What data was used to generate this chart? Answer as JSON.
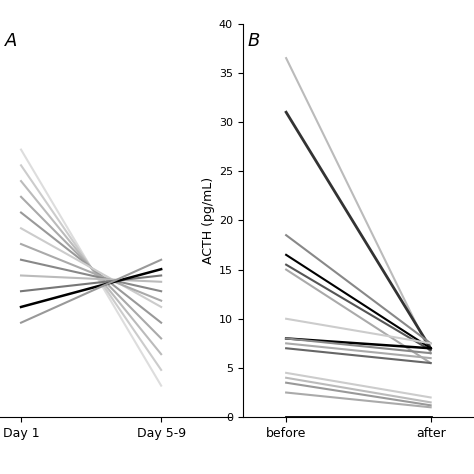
{
  "panel_A": {
    "label": "A",
    "xtick_labels": [
      "Day 1",
      "Day 5-9"
    ],
    "lines": [
      {
        "y": [
          8.0,
          0.5
        ],
        "color": "#dddddd",
        "lw": 1.5
      },
      {
        "y": [
          7.5,
          1.0
        ],
        "color": "#cccccc",
        "lw": 1.5
      },
      {
        "y": [
          7.0,
          1.5
        ],
        "color": "#bbbbbb",
        "lw": 1.5
      },
      {
        "y": [
          6.5,
          2.0
        ],
        "color": "#aaaaaa",
        "lw": 1.5
      },
      {
        "y": [
          6.0,
          2.5
        ],
        "color": "#999999",
        "lw": 1.5
      },
      {
        "y": [
          5.5,
          3.0
        ],
        "color": "#cccccc",
        "lw": 1.5
      },
      {
        "y": [
          5.0,
          3.2
        ],
        "color": "#aaaaaa",
        "lw": 1.5
      },
      {
        "y": [
          4.5,
          3.5
        ],
        "color": "#888888",
        "lw": 1.5
      },
      {
        "y": [
          4.0,
          3.8
        ],
        "color": "#bbbbbb",
        "lw": 1.5
      },
      {
        "y": [
          3.5,
          4.0
        ],
        "color": "#777777",
        "lw": 1.5
      },
      {
        "y": [
          3.0,
          4.2
        ],
        "color": "#000000",
        "lw": 1.8
      },
      {
        "y": [
          2.5,
          4.5
        ],
        "color": "#999999",
        "lw": 1.5
      }
    ],
    "ylim": [
      -0.5,
      12
    ],
    "yticks": []
  },
  "panel_B": {
    "label": "B",
    "xtick_labels": [
      "before",
      "after"
    ],
    "ylabel": "ACTH (pg/mL)",
    "lines": [
      {
        "before": 36.5,
        "after": 6.5,
        "color": "#bbbbbb",
        "lw": 1.5
      },
      {
        "before": 31.0,
        "after": 7.0,
        "color": "#333333",
        "lw": 2.0
      },
      {
        "before": 18.5,
        "after": 7.5,
        "color": "#888888",
        "lw": 1.5
      },
      {
        "before": 16.5,
        "after": 7.0,
        "color": "#000000",
        "lw": 1.5
      },
      {
        "before": 15.5,
        "after": 6.8,
        "color": "#555555",
        "lw": 1.5
      },
      {
        "before": 15.0,
        "after": 5.5,
        "color": "#aaaaaa",
        "lw": 1.5
      },
      {
        "before": 10.0,
        "after": 7.5,
        "color": "#cccccc",
        "lw": 1.5
      },
      {
        "before": 8.0,
        "after": 7.0,
        "color": "#000000",
        "lw": 1.8
      },
      {
        "before": 8.0,
        "after": 6.5,
        "color": "#888888",
        "lw": 1.5
      },
      {
        "before": 7.5,
        "after": 6.0,
        "color": "#aaaaaa",
        "lw": 1.5
      },
      {
        "before": 7.0,
        "after": 5.5,
        "color": "#666666",
        "lw": 1.5
      },
      {
        "before": 4.5,
        "after": 2.0,
        "color": "#cccccc",
        "lw": 1.5
      },
      {
        "before": 4.0,
        "after": 1.5,
        "color": "#bbbbbb",
        "lw": 1.5
      },
      {
        "before": 3.5,
        "after": 1.2,
        "color": "#999999",
        "lw": 1.5
      },
      {
        "before": 2.5,
        "after": 1.0,
        "color": "#aaaaaa",
        "lw": 1.5
      },
      {
        "before": 0.0,
        "after": 0.0,
        "color": "#000000",
        "lw": 2.0
      }
    ],
    "ylim": [
      0,
      40
    ],
    "yticks": [
      0,
      5,
      10,
      15,
      20,
      25,
      30,
      35,
      40
    ]
  }
}
